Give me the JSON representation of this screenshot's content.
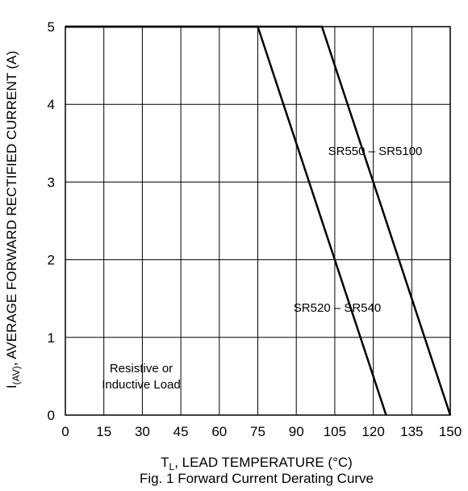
{
  "chart_data": {
    "type": "line",
    "caption": "Fig. 1 Forward Current Derating Curve",
    "xlabel": {
      "prefix": "T",
      "subscript": "L",
      "suffix": ", LEAD TEMPERATURE (°C)"
    },
    "ylabel": {
      "prefix": "I",
      "subscript": "(AV)",
      "suffix": ", AVERAGE FORWARD RECTIFIED CURRENT (A)"
    },
    "xlim": [
      0,
      150
    ],
    "ylim": [
      0,
      5
    ],
    "x_ticks": [
      0,
      15,
      30,
      45,
      60,
      75,
      90,
      105,
      120,
      135,
      150
    ],
    "y_ticks": [
      0,
      1,
      2,
      3,
      4,
      5
    ],
    "grid": true,
    "series": [
      {
        "name": "SR520 – SR540",
        "points": [
          [
            0,
            5
          ],
          [
            75,
            5
          ],
          [
            125,
            0
          ]
        ]
      },
      {
        "name": "SR550 – SR5100",
        "points": [
          [
            0,
            5
          ],
          [
            100,
            5
          ],
          [
            150,
            0
          ]
        ]
      }
    ],
    "annotations": [
      {
        "id": "label-sr550",
        "text": "SR550 – SR5100"
      },
      {
        "id": "label-sr520",
        "text": "SR520 – SR540"
      },
      {
        "id": "note-load-1",
        "text": "Resistive or"
      },
      {
        "id": "note-load-2",
        "text": "Inductive Load"
      }
    ],
    "colors": {
      "line": "#000000",
      "grid": "#000000",
      "background": "#ffffff"
    }
  }
}
